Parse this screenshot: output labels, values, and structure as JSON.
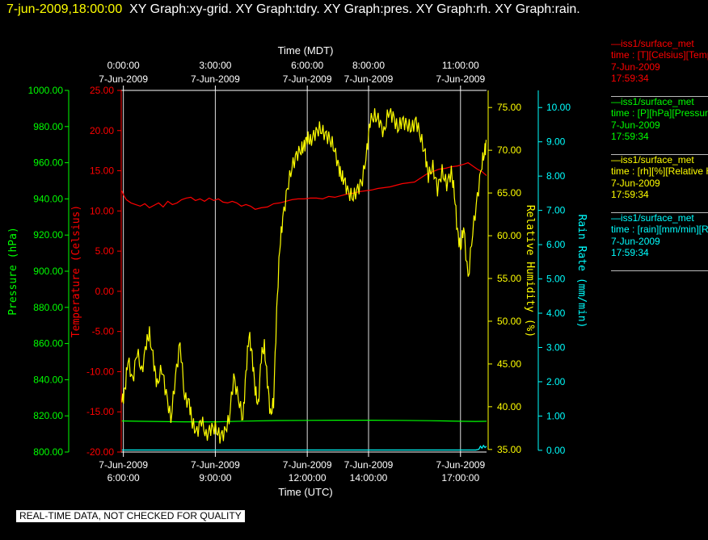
{
  "header": {
    "timestamp": "7-jun-2009,18:00:00",
    "graphs": "XY Graph:xy-grid.  XY Graph:tdry.  XY Graph:pres.  XY Graph:rh.  XY Graph:rain."
  },
  "legend": [
    {
      "line1": "—iss1/surface_met",
      "line2": "time : [T][Celsius][Temperature]",
      "line3": "7-Jun-2009",
      "line4": "17:59:34",
      "color": "#ff0000"
    },
    {
      "line1": "—iss1/surface_met",
      "line2": "time : [P][hPa][Pressure]",
      "line3": "7-Jun-2009",
      "line4": "17:59:34",
      "color": "#00ff00"
    },
    {
      "line1": "—iss1/surface_met",
      "line2": "time : [rh][%][Relative Humidity]",
      "line3": "7-Jun-2009",
      "line4": "17:59:34",
      "color": "#ffff00"
    },
    {
      "line1": "—iss1/surface_met",
      "line2": "time : [rain][mm/min][Rain Rate]",
      "line3": "7-Jun-2009",
      "line4": "17:59:34",
      "color": "#00ffff"
    }
  ],
  "disclaimer": "REAL-TIME DATA, NOT CHECKED FOR QUALITY",
  "chart_data": {
    "type": "line",
    "x_unit": "hours (UTC)",
    "xlim": [
      5.93,
      17.85
    ],
    "grid": true,
    "top_axis": {
      "label": "Time (MDT)",
      "ticks": [
        {
          "x": 6,
          "time": "0:00:00",
          "date": "7-Jun-2009"
        },
        {
          "x": 9,
          "time": "3:00:00",
          "date": "7-Jun-2009"
        },
        {
          "x": 12,
          "time": "6:00:00",
          "date": "7-Jun-2009"
        },
        {
          "x": 14,
          "time": "8:00:00",
          "date": "7-Jun-2009"
        },
        {
          "x": 17,
          "time": "11:00:00",
          "date": "7-Jun-2009"
        }
      ]
    },
    "bottom_axis": {
      "label": "Time (UTC)",
      "ticks": [
        {
          "x": 6,
          "time": "6:00:00",
          "date": "7-Jun-2009"
        },
        {
          "x": 9,
          "time": "9:00:00",
          "date": "7-Jun-2009"
        },
        {
          "x": 12,
          "time": "12:00:00",
          "date": "7-Jun-2009"
        },
        {
          "x": 14,
          "time": "14:00:00",
          "date": "7-Jun-2009"
        },
        {
          "x": 17,
          "time": "17:00:00",
          "date": "7-Jun-2009"
        }
      ]
    },
    "y_axes": [
      {
        "id": "pres",
        "label": "Pressure (hPa)",
        "color": "#00ff00",
        "ylim": [
          800,
          1000
        ],
        "ticks": [
          "1000.00",
          "980.00",
          "960.00",
          "940.00",
          "920.00",
          "900.00",
          "880.00",
          "860.00",
          "840.00",
          "820.00",
          "800.00"
        ]
      },
      {
        "id": "tdry",
        "label": "Temperature (Celsius)",
        "color": "#ff0000",
        "ylim": [
          -20,
          25
        ],
        "ticks": [
          "25.00",
          "20.00",
          "15.00",
          "10.00",
          "5.00",
          "0.00",
          "-5.00",
          "-10.00",
          "-15.00",
          "-20.00"
        ]
      },
      {
        "id": "rh",
        "label": "Relative Humidity (%)",
        "color": "#ffff00",
        "ylim": [
          34.7,
          77
        ],
        "ticks": [
          "75.00",
          "70.00",
          "65.00",
          "60.00",
          "55.00",
          "50.00",
          "45.00",
          "40.00",
          "35.00"
        ]
      },
      {
        "id": "rain",
        "label": "Rain Rate (mm/min)",
        "color": "#00ffff",
        "ylim": [
          -0.05,
          10.5
        ],
        "ticks": [
          "10.00",
          "9.00",
          "8.00",
          "7.00",
          "6.00",
          "5.00",
          "4.00",
          "3.00",
          "2.00",
          "1.00",
          "0.00"
        ]
      }
    ],
    "series": [
      {
        "name": "iss1/surface_met Temperature",
        "axis": "tdry",
        "color": "#ff0000",
        "x": [
          5.95,
          6.0,
          6.1,
          6.25,
          6.4,
          6.55,
          6.7,
          6.85,
          7.0,
          7.15,
          7.3,
          7.45,
          7.6,
          7.75,
          7.9,
          8.05,
          8.2,
          8.35,
          8.5,
          8.65,
          8.8,
          8.95,
          9.1,
          9.25,
          9.4,
          9.55,
          9.7,
          9.85,
          10.0,
          10.15,
          10.3,
          10.5,
          10.7,
          10.9,
          11.1,
          11.3,
          11.5,
          11.7,
          11.9,
          12.1,
          12.3,
          12.5,
          12.7,
          12.9,
          13.1,
          13.3,
          13.5,
          13.7,
          13.9,
          14.1,
          14.3,
          14.5,
          14.7,
          14.9,
          15.1,
          15.3,
          15.5,
          15.7,
          15.9,
          16.1,
          16.3,
          16.5,
          16.7,
          16.9,
          17.1,
          17.25,
          17.4,
          17.55,
          17.7,
          17.85
        ],
        "y": [
          12.5,
          12.0,
          11.4,
          11.0,
          10.8,
          10.6,
          10.9,
          10.4,
          10.7,
          11.0,
          10.5,
          11.2,
          10.8,
          11.0,
          11.4,
          11.6,
          11.7,
          11.3,
          11.5,
          11.2,
          11.6,
          11.3,
          11.5,
          11.1,
          11.0,
          11.2,
          11.0,
          10.6,
          10.8,
          10.6,
          10.2,
          10.4,
          10.5,
          10.9,
          11.0,
          11.2,
          11.4,
          11.5,
          11.5,
          11.6,
          11.6,
          11.5,
          11.8,
          11.7,
          11.9,
          12.1,
          12.2,
          12.4,
          12.5,
          12.6,
          12.8,
          12.9,
          13.0,
          13.2,
          13.4,
          13.5,
          13.6,
          14.1,
          14.6,
          14.9,
          15.2,
          15.3,
          15.5,
          15.6,
          15.8,
          16.0,
          15.6,
          15.2,
          14.9,
          14.4
        ]
      },
      {
        "name": "iss1/surface_met Pressure",
        "axis": "pres",
        "color": "#00ff00",
        "x": [
          5.95,
          6.5,
          7.0,
          8.0,
          9.0,
          10.0,
          11.0,
          12.0,
          13.0,
          14.0,
          15.0,
          16.0,
          16.5,
          17.0,
          17.5,
          17.85
        ],
        "y": [
          817.2,
          817.0,
          816.9,
          816.7,
          816.7,
          817.1,
          817.4,
          817.5,
          817.6,
          817.6,
          817.5,
          817.3,
          817.2,
          817.0,
          816.9,
          817.0
        ]
      },
      {
        "name": "iss1/surface_met Relative Humidity",
        "axis": "rh",
        "color": "#ffff00",
        "x": [
          5.95,
          6.05,
          6.15,
          6.3,
          6.45,
          6.6,
          6.75,
          6.85,
          7.0,
          7.1,
          7.25,
          7.4,
          7.55,
          7.7,
          7.85,
          8.0,
          8.15,
          8.25,
          8.4,
          8.55,
          8.7,
          8.85,
          9.0,
          9.15,
          9.3,
          9.45,
          9.6,
          9.75,
          9.9,
          10.0,
          10.1,
          10.2,
          10.3,
          10.4,
          10.5,
          10.6,
          10.7,
          10.8,
          10.9,
          11.0,
          11.1,
          11.2,
          11.35,
          11.5,
          11.65,
          11.8,
          11.9,
          12.0,
          12.1,
          12.25,
          12.4,
          12.55,
          12.7,
          12.85,
          13.0,
          13.1,
          13.2,
          13.35,
          13.5,
          13.65,
          13.8,
          13.95,
          14.05,
          14.2,
          14.35,
          14.5,
          14.65,
          14.8,
          14.95,
          15.1,
          15.25,
          15.4,
          15.55,
          15.7,
          15.85,
          15.95,
          16.1,
          16.25,
          16.4,
          16.55,
          16.7,
          16.8,
          16.9,
          17.0,
          17.1,
          17.25,
          17.4,
          17.55,
          17.7,
          17.8,
          17.85
        ],
        "y": [
          40.5,
          42.0,
          45.5,
          43.0,
          46.5,
          44.0,
          47.5,
          48.5,
          45.0,
          42.5,
          44.5,
          41.5,
          38.5,
          43.5,
          47.5,
          41.0,
          40.5,
          38.0,
          37.0,
          38.5,
          36.5,
          37.5,
          37.5,
          36.5,
          37.0,
          38.5,
          43.5,
          41.0,
          38.5,
          44.0,
          48.5,
          46.0,
          42.0,
          40.0,
          46.0,
          47.0,
          43.0,
          39.0,
          40.5,
          51.0,
          58.5,
          62.0,
          65.5,
          68.0,
          69.5,
          70.0,
          70.5,
          71.5,
          71.0,
          72.0,
          72.5,
          72.0,
          71.5,
          70.5,
          68.5,
          67.0,
          66.5,
          65.0,
          64.5,
          65.5,
          66.5,
          70.0,
          73.5,
          74.0,
          73.5,
          72.0,
          74.5,
          74.0,
          72.5,
          73.5,
          73.0,
          72.5,
          73.5,
          71.5,
          69.5,
          67.0,
          68.0,
          65.5,
          67.5,
          66.0,
          67.5,
          65.0,
          60.5,
          58.5,
          61.0,
          55.0,
          60.5,
          64.5,
          68.5,
          70.0,
          71.0
        ]
      },
      {
        "name": "iss1/surface_met Rain Rate",
        "axis": "rain",
        "color": "#00ffff",
        "x": [
          5.95,
          7.0,
          8.0,
          9.0,
          10.0,
          11.0,
          12.0,
          13.0,
          14.0,
          15.0,
          16.0,
          17.0,
          17.5,
          17.6,
          17.65,
          17.7,
          17.75,
          17.8,
          17.85
        ],
        "y": [
          0.01,
          0.01,
          0.01,
          0.01,
          0.01,
          0.01,
          0.01,
          0.01,
          0.01,
          0.01,
          0.01,
          0.01,
          0.01,
          0.03,
          0.12,
          0.06,
          0.14,
          0.08,
          0.12
        ]
      }
    ]
  }
}
